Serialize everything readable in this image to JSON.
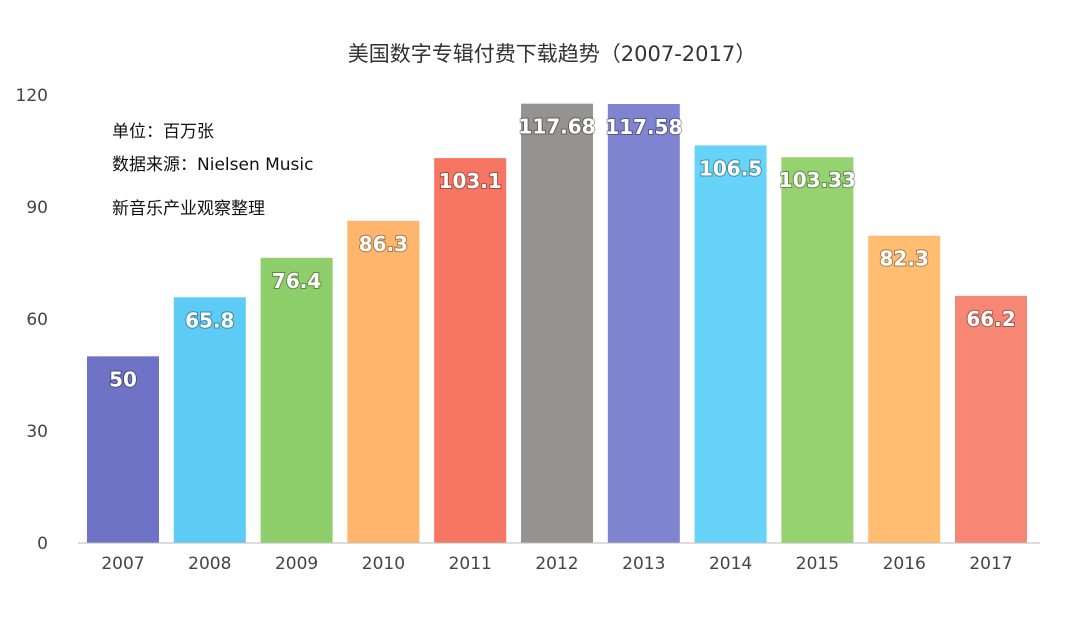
{
  "chart_data": {
    "type": "bar",
    "title": "美国数字专辑付费下载趋势（2007-2017）",
    "notes": [
      "单位：百万张",
      "数据来源：Nielsen Music",
      "新音乐产业观察整理"
    ],
    "categories": [
      "2007",
      "2008",
      "2009",
      "2010",
      "2011",
      "2012",
      "2013",
      "2014",
      "2015",
      "2016",
      "2017"
    ],
    "values": [
      50,
      65.8,
      76.4,
      86.3,
      103.1,
      117.68,
      117.58,
      106.5,
      103.33,
      82.3,
      66.2
    ],
    "value_labels": [
      "50",
      "65.8",
      "76.4",
      "86.3",
      "103.1",
      "117.68",
      "117.58",
      "106.5",
      "103.33",
      "82.3",
      "66.2"
    ],
    "bar_colors": [
      "#6f73c6",
      "#5ccbf6",
      "#8fcf6b",
      "#ffb56b",
      "#f77563",
      "#959390",
      "#7f84d1",
      "#68d3f9",
      "#95d270",
      "#ffbd72",
      "#f88674"
    ],
    "yticks": [
      "0",
      "30",
      "60",
      "90",
      "120"
    ],
    "ylim": [
      0,
      120
    ],
    "grid": false,
    "xlabel": "",
    "ylabel": ""
  }
}
